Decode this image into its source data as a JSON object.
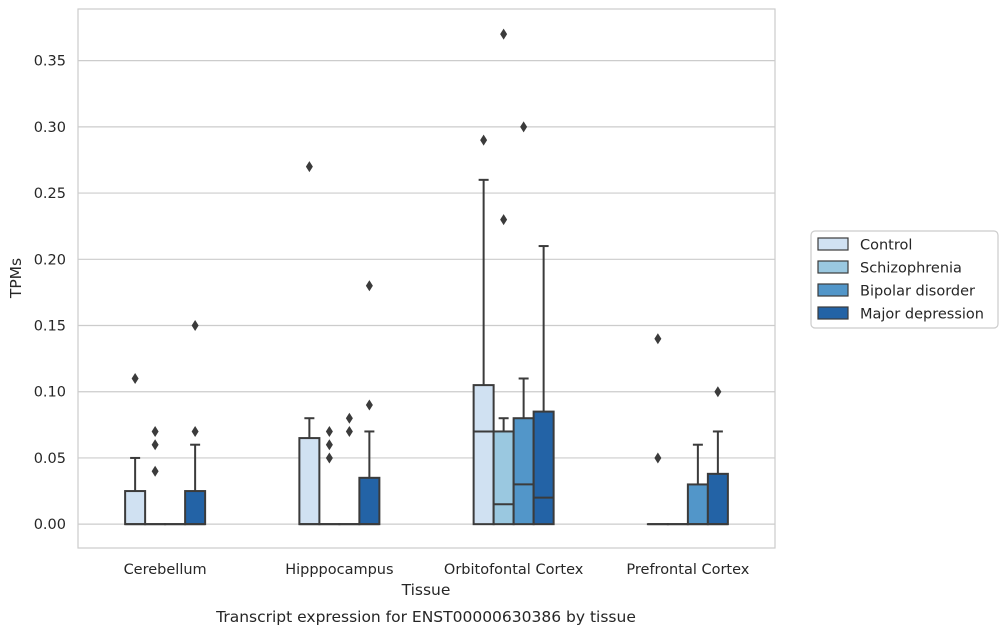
{
  "chart_data": {
    "type": "boxplot",
    "xlabel": "Tissue",
    "ylabel": "TPMs",
    "caption": "Transcript expression for ENST00000630386 by tissue",
    "ylim": [
      -0.018,
      0.389
    ],
    "yticks": [
      "0.00",
      "0.05",
      "0.10",
      "0.15",
      "0.20",
      "0.25",
      "0.30",
      "0.35"
    ],
    "grid": "horizontal",
    "legend_position": "right",
    "categories": [
      "Cerebellum",
      "Hipppocampus",
      "Orbitofontal Cortex",
      "Prefrontal Cortex"
    ],
    "series": [
      {
        "name": "Control",
        "color": "#d0e1f2",
        "boxes": [
          {
            "min": 0,
            "q1": 0,
            "median": 0,
            "q3": 0.025,
            "max": 0.05,
            "outliers": [
              0.11
            ]
          },
          {
            "min": 0,
            "q1": 0,
            "median": 0,
            "q3": 0.065,
            "max": 0.08,
            "outliers": [
              0.27
            ]
          },
          {
            "min": 0,
            "q1": 0,
            "median": 0.07,
            "q3": 0.105,
            "max": 0.26,
            "outliers": [
              0.29
            ]
          },
          {
            "min": 0,
            "q1": 0,
            "median": 0,
            "q3": 0,
            "max": 0,
            "outliers": [
              0.14,
              0.05
            ]
          }
        ]
      },
      {
        "name": "Schizophrenia",
        "color": "#9ac8e0",
        "boxes": [
          {
            "min": 0,
            "q1": 0,
            "median": 0,
            "q3": 0,
            "max": 0,
            "outliers": [
              0.07,
              0.06,
              0.04
            ]
          },
          {
            "min": 0,
            "q1": 0,
            "median": 0,
            "q3": 0,
            "max": 0,
            "outliers": [
              0.07,
              0.06,
              0.05
            ]
          },
          {
            "min": 0,
            "q1": 0,
            "median": 0.015,
            "q3": 0.07,
            "max": 0.08,
            "outliers": [
              0.37,
              0.23
            ]
          },
          {
            "min": 0,
            "q1": 0,
            "median": 0,
            "q3": 0,
            "max": 0,
            "outliers": []
          }
        ]
      },
      {
        "name": "Bipolar disorder",
        "color": "#5296c9",
        "boxes": [
          {
            "min": 0,
            "q1": 0,
            "median": 0,
            "q3": 0,
            "max": 0,
            "outliers": []
          },
          {
            "min": 0,
            "q1": 0,
            "median": 0,
            "q3": 0,
            "max": 0,
            "outliers": [
              0.08,
              0.07
            ]
          },
          {
            "min": 0,
            "q1": 0,
            "median": 0.03,
            "q3": 0.08,
            "max": 0.11,
            "outliers": [
              0.3
            ]
          },
          {
            "min": 0,
            "q1": 0,
            "median": 0,
            "q3": 0.03,
            "max": 0.06,
            "outliers": []
          }
        ]
      },
      {
        "name": "Major depression",
        "color": "#2363a6",
        "boxes": [
          {
            "min": 0,
            "q1": 0,
            "median": 0,
            "q3": 0.025,
            "max": 0.06,
            "outliers": [
              0.15,
              0.07
            ]
          },
          {
            "min": 0,
            "q1": 0,
            "median": 0,
            "q3": 0.035,
            "max": 0.07,
            "outliers": [
              0.18,
              0.09
            ]
          },
          {
            "min": 0,
            "q1": 0,
            "median": 0.02,
            "q3": 0.085,
            "max": 0.21,
            "outliers": []
          },
          {
            "min": 0,
            "q1": 0,
            "median": 0,
            "q3": 0.038,
            "max": 0.07,
            "outliers": [
              0.1
            ]
          }
        ]
      }
    ]
  }
}
